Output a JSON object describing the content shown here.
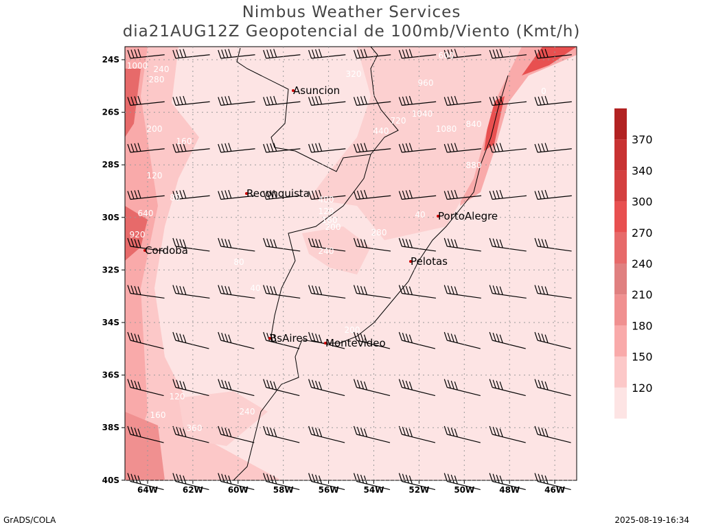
{
  "header": {
    "title": "Nimbus Weather Services",
    "subtitle": "dia21AUG12Z Geopotencial de 100mb/Viento (Kmt/h)"
  },
  "map": {
    "lat_labels": [
      "24S",
      "26S",
      "28S",
      "30S",
      "32S",
      "34S",
      "36S",
      "38S",
      "40S"
    ],
    "lon_labels": [
      "64W",
      "62W",
      "60W",
      "58W",
      "56W",
      "54W",
      "52W",
      "50W",
      "48W",
      "46W"
    ],
    "cities": [
      "Asuncion",
      "Reconquista",
      "PortoAlegre",
      "Cordoba",
      "Pelotas",
      "BsAires",
      "Montevideo"
    ],
    "contour_labels": [
      "1000",
      "240",
      "280",
      "200",
      "160",
      "120",
      "80",
      "640",
      "920",
      "400",
      "320",
      "720",
      "440",
      "960",
      "1040",
      "1080",
      "880",
      "600",
      "840",
      "0",
      "40",
      "120",
      "160",
      "200",
      "240",
      "280",
      "360",
      "80",
      "40",
      "120",
      "160",
      "200",
      "240"
    ]
  },
  "colorbar": {
    "labels": [
      "120",
      "150",
      "180",
      "210",
      "240",
      "270",
      "300",
      "340",
      "370"
    ]
  },
  "footer": {
    "left": "GrADS/COLA",
    "right": "2025-08-19-16:34"
  }
}
